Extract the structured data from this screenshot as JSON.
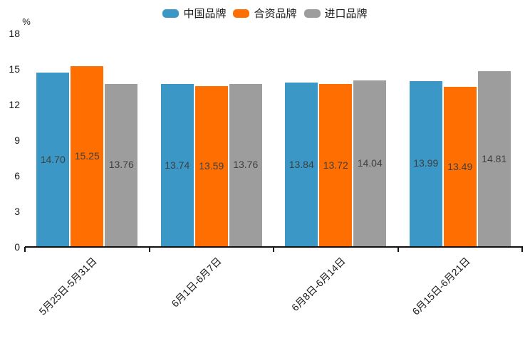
{
  "legend": {
    "items": [
      {
        "name": "中国品牌",
        "color": "#3A97C6"
      },
      {
        "name": "合资品牌",
        "color": "#FF6E00"
      },
      {
        "name": "进口品牌",
        "color": "#9D9D9D"
      }
    ]
  },
  "y_axis": {
    "unit": "%",
    "ticks": [
      0,
      3,
      6,
      9,
      12,
      15,
      18
    ],
    "max": 18
  },
  "chart_data": {
    "type": "bar",
    "title": "",
    "xlabel": "",
    "ylabel": "%",
    "ylim": [
      0,
      18
    ],
    "grid": false,
    "legend_position": "top-center",
    "value_labels": "inside-center",
    "categories": [
      "5月25日-5月31日",
      "6月1日-6月7日",
      "6月8日-6月14日",
      "6月15日-6月21日"
    ],
    "series": [
      {
        "name": "中国品牌",
        "color": "#3A97C6",
        "values": [
          14.7,
          13.74,
          13.84,
          13.99
        ]
      },
      {
        "name": "合资品牌",
        "color": "#FF6E00",
        "values": [
          15.25,
          13.59,
          13.72,
          13.49
        ]
      },
      {
        "name": "进口品牌",
        "color": "#9D9D9D",
        "values": [
          13.76,
          13.76,
          14.04,
          14.81
        ]
      }
    ]
  }
}
